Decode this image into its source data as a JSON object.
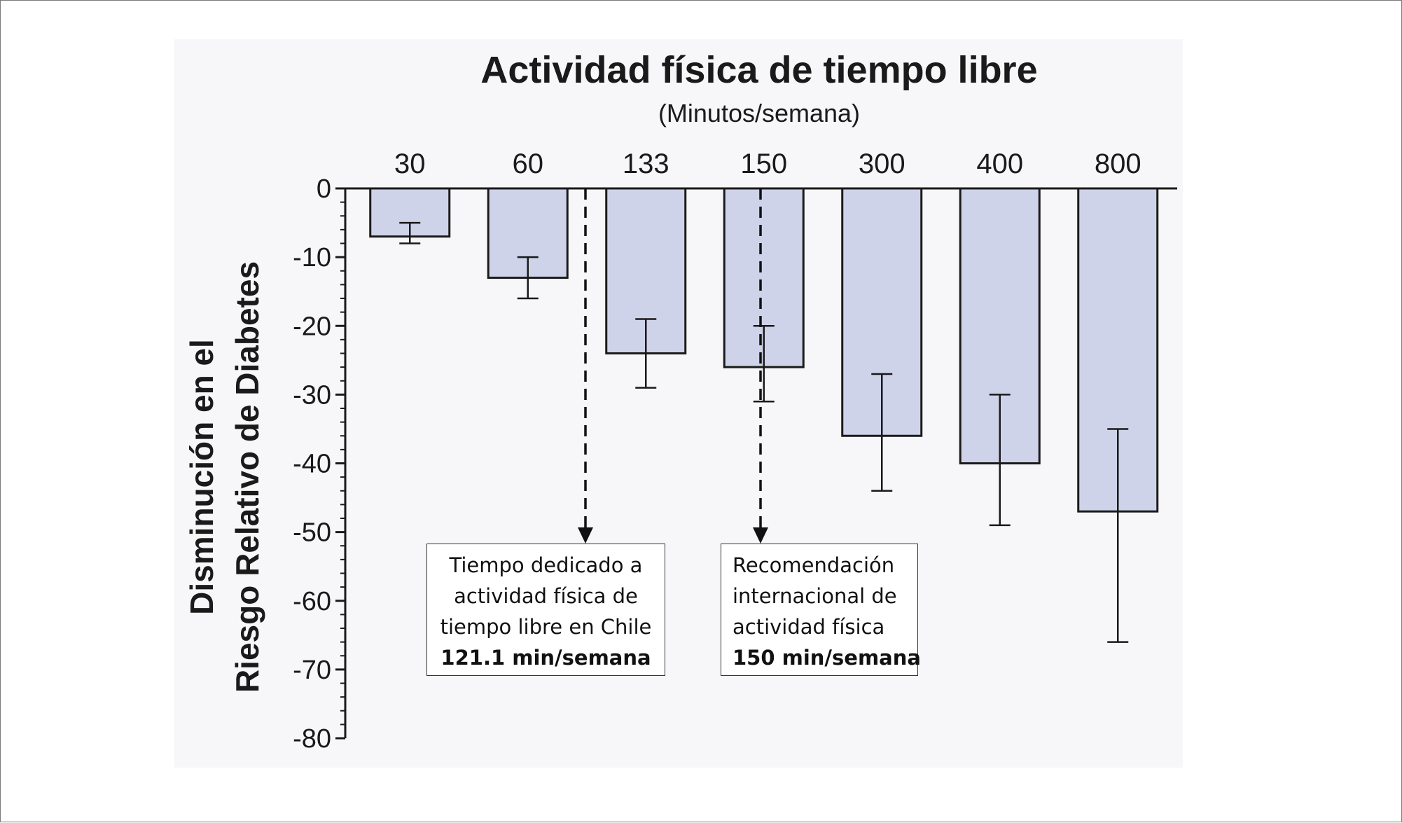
{
  "chart_data": {
    "type": "bar",
    "title": "Actividad física de tiempo libre",
    "subtitle": "(Minutos/semana)",
    "xlabel": "",
    "ylabel_lines": [
      "Disminución en el",
      "Riesgo Relativo de Diabetes"
    ],
    "categories": [
      "30",
      "60",
      "133",
      "150",
      "300",
      "400",
      "800"
    ],
    "values": [
      -7,
      -13,
      -24,
      -26,
      -36,
      -40,
      -47
    ],
    "error_upper": [
      -5,
      -10,
      -19,
      -20,
      -27,
      -30,
      -35
    ],
    "error_lower": [
      -8,
      -16,
      -29,
      -31,
      -44,
      -49,
      -66
    ],
    "ylim": [
      -80,
      0
    ],
    "yticks": [
      0,
      -10,
      -20,
      -30,
      -40,
      -50,
      -60,
      -70,
      -80
    ],
    "ytick_labels": [
      "0",
      "-10",
      "-20",
      "-30",
      "-40",
      "-50",
      "-60",
      "-70",
      "-80"
    ],
    "x_axis_position": "top",
    "grid": false,
    "colors": {
      "bar_fill": "#cfd3ea",
      "bar_stroke": "#1a1a1a",
      "axis": "#1a1a1a"
    },
    "annotations": [
      {
        "id": "chile",
        "arrow_at_category": "133",
        "arrow_position": "between 60 and 133",
        "lines": [
          "Tiempo dedicado a",
          "actividad física de",
          "tiempo libre en Chile"
        ],
        "bold_line": "121.1 min/semana"
      },
      {
        "id": "recommendation",
        "arrow_at_category": "150",
        "lines": [
          "Recomendación",
          "internacional de",
          "actividad física"
        ],
        "bold_line": "150 min/semana"
      }
    ]
  }
}
